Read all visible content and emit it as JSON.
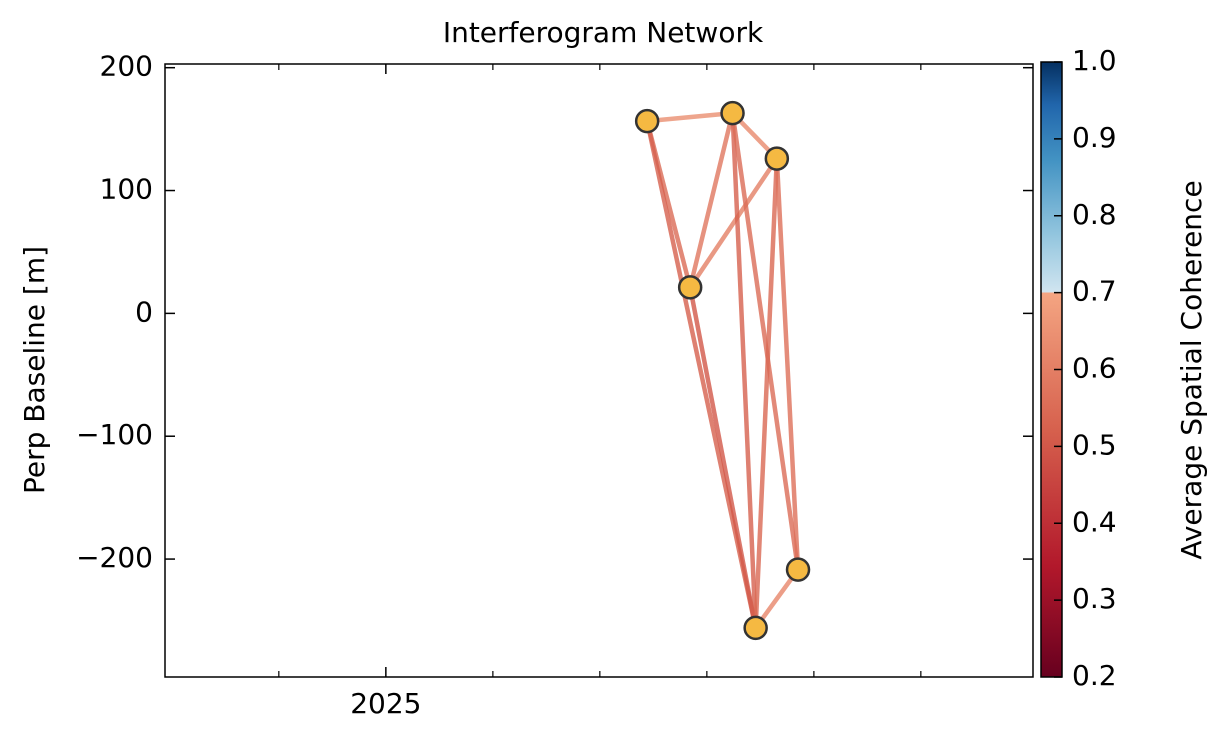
{
  "chart_data": {
    "type": "network",
    "title": "Interferogram Network",
    "ylabel": "Perp Baseline [m]",
    "colorbar_label": "Average Spatial Coherence",
    "xlim": [
      2024.656,
      2026.008
    ],
    "xticks": [
      2025
    ],
    "xminorticks": [
      2024.8333,
      2025.1667,
      2025.3333,
      2025.5,
      2025.6667,
      2025.8333
    ],
    "ylim": [
      -296,
      203
    ],
    "yticks": [
      {
        "value": -200,
        "label": "−200"
      },
      {
        "value": -100,
        "label": "−100"
      },
      0,
      100,
      200
    ],
    "clim": [
      0.2,
      1.0
    ],
    "cticks": [
      0.2,
      0.3,
      0.4,
      0.5,
      0.6,
      0.7,
      0.8,
      0.9,
      {
        "value": 1,
        "label": "1.0"
      }
    ],
    "point_color": "#f5b942",
    "points": {
      "x": [
        2025.407,
        2025.474,
        2025.54,
        2025.576,
        2025.609,
        2025.642
      ],
      "y": [
        156.5,
        21.2,
        163,
        -256,
        126,
        -208.6
      ]
    },
    "edges": [
      {
        "source": 0,
        "target": 2,
        "coherence": 0.64
      },
      {
        "source": 2,
        "target": 4,
        "coherence": 0.63
      },
      {
        "source": 1,
        "target": 4,
        "coherence": 0.6
      },
      {
        "source": 1,
        "target": 2,
        "coherence": 0.58
      },
      {
        "source": 0,
        "target": 1,
        "coherence": 0.55
      },
      {
        "source": 0,
        "target": 3,
        "coherence": 0.52
      },
      {
        "source": 1,
        "target": 3,
        "coherence": 0.5
      },
      {
        "source": 2,
        "target": 3,
        "coherence": 0.52
      },
      {
        "source": 2,
        "target": 5,
        "coherence": 0.55
      },
      {
        "source": 4,
        "target": 3,
        "coherence": 0.54
      },
      {
        "source": 4,
        "target": 5,
        "coherence": 0.56
      },
      {
        "source": 3,
        "target": 5,
        "coherence": 0.62
      }
    ]
  }
}
